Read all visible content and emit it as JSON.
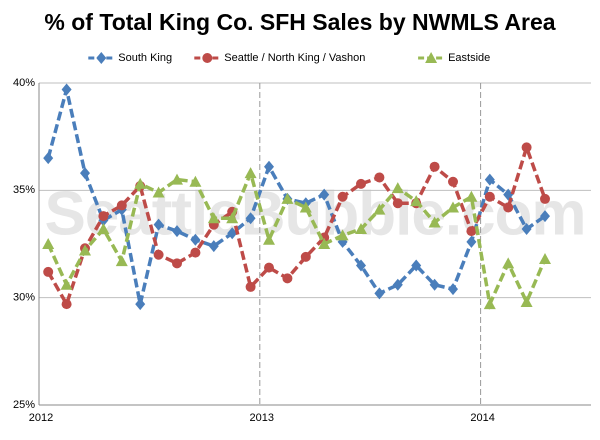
{
  "chart_data": {
    "type": "line",
    "title": "% of Total King Co. SFH Sales by NWMLS Area",
    "watermark": "SeattleBubble.com",
    "categories": [
      "2012",
      null,
      null,
      null,
      null,
      null,
      null,
      null,
      null,
      null,
      null,
      null,
      "2013",
      null,
      null,
      null,
      null,
      null,
      null,
      null,
      null,
      null,
      null,
      null,
      "2014",
      null,
      null,
      null,
      null,
      null
    ],
    "series": [
      {
        "name": "South King",
        "color": "#4a7ebb",
        "marker": "diamond",
        "values": [
          36.5,
          39.7,
          35.8,
          33.6,
          34.1,
          29.7,
          33.4,
          33.1,
          32.7,
          32.4,
          33.0,
          33.7,
          36.1,
          34.6,
          34.4,
          34.8,
          32.6,
          31.5,
          30.2,
          30.6,
          31.5,
          30.6,
          30.4,
          32.6,
          35.5,
          34.8,
          33.2,
          33.8,
          null,
          null
        ]
      },
      {
        "name": "Seattle / North King / Vashon",
        "color": "#be4b48",
        "marker": "circle",
        "values": [
          31.2,
          29.7,
          32.3,
          33.8,
          34.3,
          35.2,
          32.0,
          31.6,
          32.1,
          33.4,
          34.0,
          30.5,
          31.4,
          30.9,
          31.9,
          32.8,
          34.7,
          35.3,
          35.6,
          34.4,
          34.4,
          36.1,
          35.4,
          33.1,
          34.7,
          34.2,
          37.0,
          34.6,
          null,
          null
        ]
      },
      {
        "name": "Eastside",
        "color": "#98b954",
        "marker": "triangle",
        "values": [
          32.5,
          30.6,
          32.2,
          33.2,
          31.7,
          35.3,
          34.9,
          35.5,
          35.4,
          33.7,
          33.7,
          35.8,
          32.7,
          34.6,
          34.2,
          32.5,
          32.9,
          33.2,
          34.1,
          35.1,
          34.5,
          33.5,
          34.2,
          34.7,
          29.7,
          31.6,
          29.8,
          31.8,
          null,
          null
        ]
      }
    ],
    "ylim": [
      25,
      40
    ],
    "yticks": [
      {
        "value": 25,
        "label": "25%"
      },
      {
        "value": 30,
        "label": "30%"
      },
      {
        "value": 35,
        "label": "35%"
      },
      {
        "value": 40,
        "label": "40%"
      }
    ],
    "grid": true,
    "legend": "top"
  }
}
